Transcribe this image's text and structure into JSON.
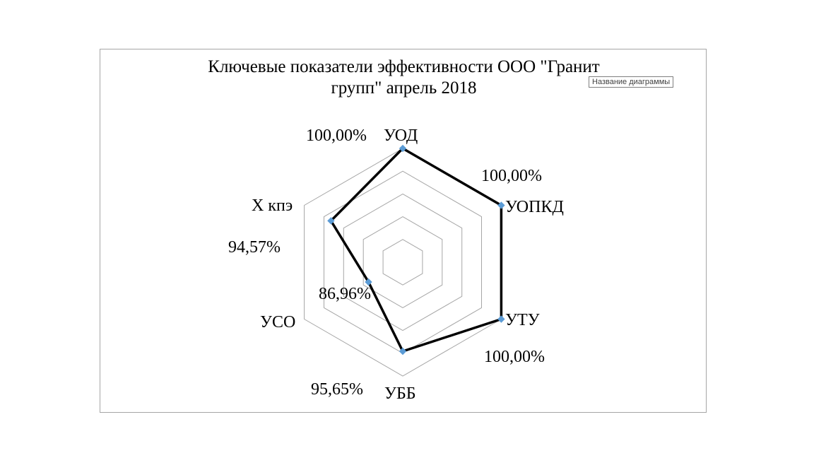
{
  "chart_data": {
    "type": "radar",
    "title_lines": [
      "Ключевые показатели эффективности ООО \"Гранит",
      "групп\" апрель 2018"
    ],
    "categories": [
      "УОД",
      "УОПКД",
      "УТУ",
      "УББ",
      "УСО",
      "X кпэ"
    ],
    "values": [
      100.0,
      100.0,
      100.0,
      95.65,
      86.96,
      94.57
    ],
    "value_labels": [
      "100,00%",
      "100,00%",
      "100,00%",
      "95,65%",
      "86,96%",
      "94,57%"
    ],
    "rlim": [
      80,
      100
    ],
    "gridlines": true,
    "colors": {
      "series_line": "#000000",
      "marker": "#5b9bd5",
      "grid": "#a6a6a6"
    }
  },
  "tooltip": {
    "text": "Название диаграммы"
  }
}
